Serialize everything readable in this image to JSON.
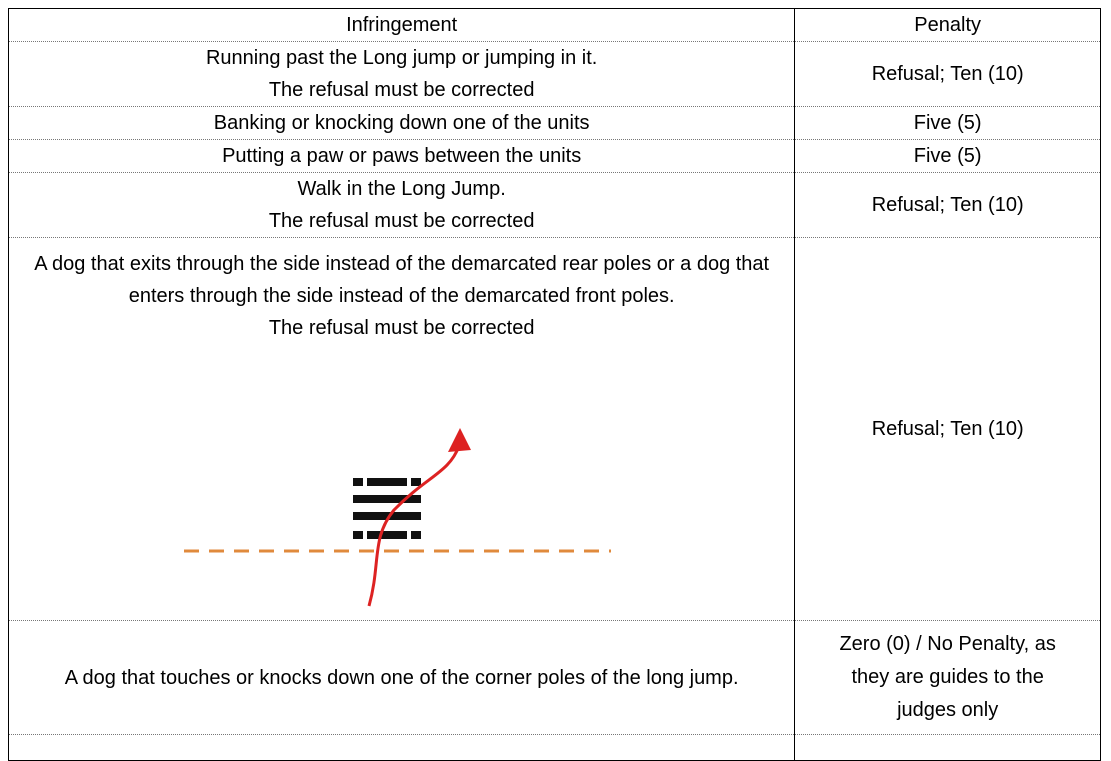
{
  "table": {
    "header": [
      "Infringement",
      "Penalty"
    ],
    "rows": [
      {
        "infringement": [
          "Running past the Long jump or jumping in it.",
          "The refusal must be corrected"
        ],
        "penalty": "Refusal; Ten (10)"
      },
      {
        "infringement": [
          "Banking or knocking down one of the units"
        ],
        "penalty": "Five (5)"
      },
      {
        "infringement": [
          "Putting a paw or paws between the units"
        ],
        "penalty": "Five (5)"
      },
      {
        "infringement": [
          "Walk in the Long Jump.",
          "The refusal must be corrected"
        ],
        "penalty": "Refusal; Ten (10)"
      },
      {
        "infringement": [
          "A dog that exits through the side instead of the demarcated rear poles or a dog that enters through the side instead of the demarcated front poles.",
          "The refusal must be corrected"
        ],
        "penalty": "Refusal; Ten (10)"
      },
      {
        "infringement": [
          "A dog that touches or knocks down one of the corner poles of the long jump."
        ],
        "penalty": "Zero (0) / No Penalty, as they are guides to the judges only"
      }
    ]
  }
}
